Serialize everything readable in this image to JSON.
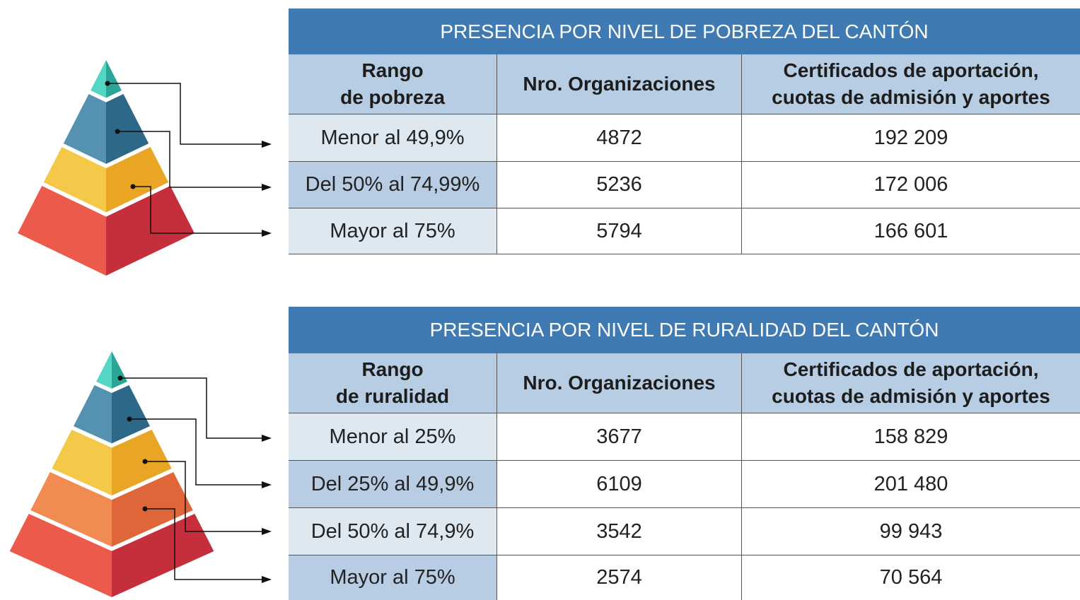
{
  "tables": [
    {
      "title": "PRESENCIA POR NIVEL DE POBREZA DEL CANTÓN",
      "headers": [
        [
          "Rango",
          "de pobreza"
        ],
        [
          "Nro. Organizaciones"
        ],
        [
          "Certificados de aportación,",
          "cuotas de admisión y aportes"
        ]
      ],
      "rows": [
        [
          "Menor al 49,9%",
          "4872",
          "192 209"
        ],
        [
          "Del 50% al 74,99%",
          "5236",
          "172 006"
        ],
        [
          "Mayor al 75%",
          "5794",
          "166 601"
        ]
      ]
    },
    {
      "title": "PRESENCIA POR NIVEL DE RURALIDAD DEL CANTÓN",
      "headers": [
        [
          "Rango",
          "de ruralidad"
        ],
        [
          "Nro. Organizaciones"
        ],
        [
          "Certificados de aportación,",
          "cuotas de admisión y aportes"
        ]
      ],
      "rows": [
        [
          "Menor al 25%",
          "3677",
          "158 829"
        ],
        [
          "Del 25% al 49,9%",
          "6109",
          "201 480"
        ],
        [
          "Del 50% al 74,9%",
          "3542",
          "99 943"
        ],
        [
          "Mayor al 75%",
          "2574",
          "70 564"
        ]
      ]
    }
  ]
}
